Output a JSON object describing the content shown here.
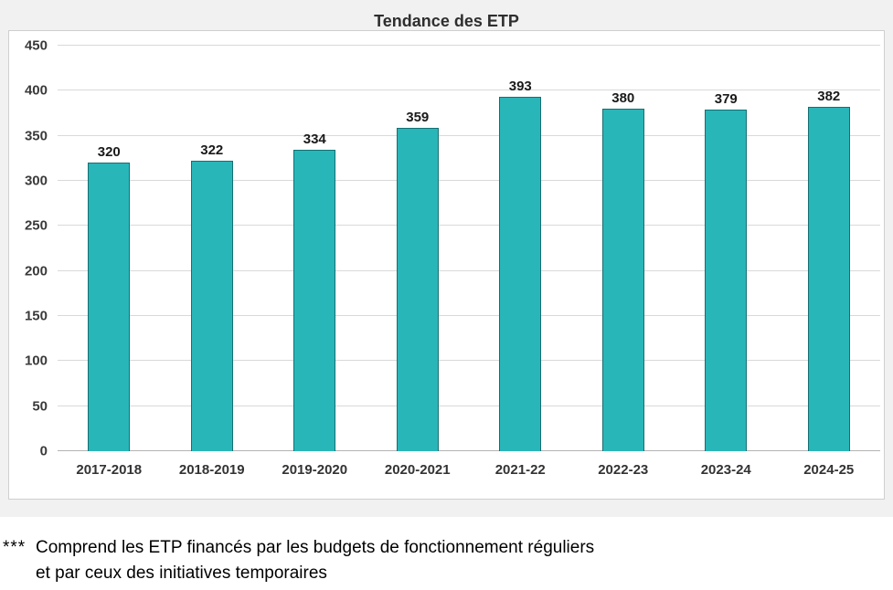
{
  "chart_data": {
    "type": "bar",
    "title": "Tendance des ETP",
    "categories": [
      "2017-2018",
      "2018-2019",
      "2019-2020",
      "2020-2021",
      "2021-22",
      "2022-23",
      "2023-24",
      "2024-25"
    ],
    "values": [
      320,
      322,
      334,
      359,
      393,
      380,
      379,
      382
    ],
    "xlabel": "",
    "ylabel": "",
    "ylim": [
      0,
      450
    ],
    "ytick_step": 50,
    "grid": true,
    "legend": "none",
    "bar_color": "#29B6B9",
    "bar_border_color": "#156F72"
  },
  "footnote": {
    "marker": "***",
    "line1": "Comprend les ETP financés par les budgets de fonctionnement réguliers",
    "line2": "et par ceux des initiatives temporaires"
  }
}
